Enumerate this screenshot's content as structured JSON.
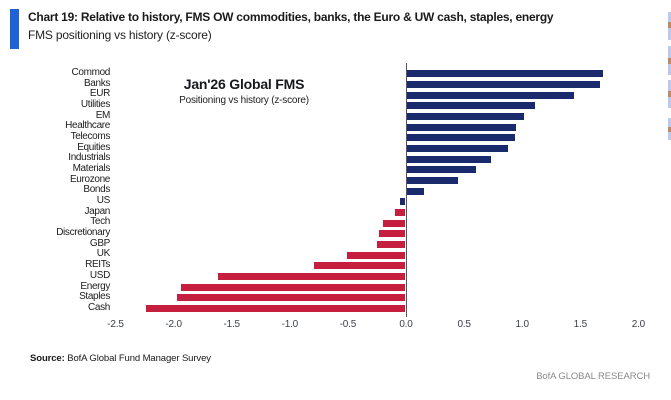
{
  "header": {
    "title": "Chart 19: Relative to history, FMS OW commodities, banks, the Euro & UW cash, staples, energy",
    "subtitle": "FMS positioning vs history (z-score)",
    "accent_color": "#1E62D6"
  },
  "chart_data": {
    "type": "bar",
    "orientation": "horizontal",
    "title": "Jan'26 Global FMS",
    "annotation_title": "Jan'26 Global FMS",
    "annotation_subtitle": "Positioning vs history (z-score)",
    "xlabel": "z-score",
    "ylabel": "",
    "grid": false,
    "xlim": [
      -2.5,
      2.0
    ],
    "x_ticks": [
      "-2.5",
      "-2.0",
      "-1.5",
      "-1.0",
      "-0.5",
      "0.0",
      "0.5",
      "1.0",
      "1.5",
      "2.0"
    ],
    "categories": [
      "Commod",
      "Banks",
      "EUR",
      "Utilities",
      "EM",
      "Healthcare",
      "Telecoms",
      "Equities",
      "Industrials",
      "Materials",
      "Eurozone",
      "Bonds",
      "US",
      "Japan",
      "Tech",
      "Discretionary",
      "GBP",
      "UK",
      "REITs",
      "USD",
      "Energy",
      "Staples",
      "Cash"
    ],
    "values": [
      1.69,
      1.66,
      1.44,
      1.1,
      1.01,
      0.94,
      0.93,
      0.87,
      0.72,
      0.59,
      0.44,
      0.15,
      -0.04,
      -0.09,
      -0.19,
      -0.22,
      -0.24,
      -0.5,
      -0.78,
      -1.61,
      -1.93,
      -1.96,
      -2.23
    ],
    "bar_colors": [
      "navy",
      "navy",
      "navy",
      "navy",
      "navy",
      "navy",
      "navy",
      "navy",
      "navy",
      "navy",
      "navy",
      "navy",
      "navy",
      "red",
      "red",
      "red",
      "red",
      "red",
      "red",
      "red",
      "red",
      "red",
      "red"
    ],
    "colors": {
      "navy": "#1A2B6D",
      "red": "#C51E3E"
    }
  },
  "footer": {
    "source_label": "Source:",
    "source_text": " BofA Global Fund Manager Survey",
    "brand": "BofA GLOBAL RESEARCH"
  }
}
